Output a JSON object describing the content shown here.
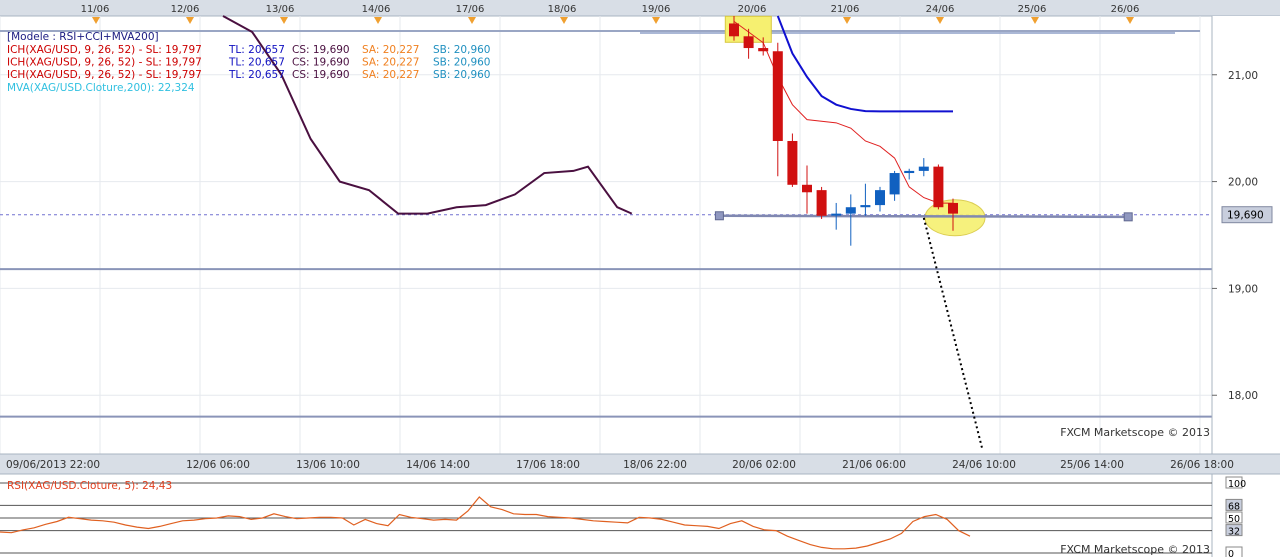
{
  "chart_data": {
    "type": "candlestick",
    "symbol": "XAG/USD",
    "top_date_labels": [
      "11/06",
      "12/06",
      "13/06",
      "14/06",
      "17/06",
      "18/06",
      "19/06",
      "20/06",
      "21/06",
      "24/06",
      "25/06",
      "26/06"
    ],
    "bottom_time_labels": [
      "09/06/2013 22:00",
      "12/06 06:00",
      "13/06 10:00",
      "14/06 14:00",
      "17/06 18:00",
      "18/06 22:00",
      "20/06 02:00",
      "21/06 06:00",
      "24/06 10:00",
      "25/06 14:00",
      "26/06 18:00"
    ],
    "legend": [
      {
        "text": "[Modele : RSI+CCI+MVA200]",
        "color": "#1a1a80"
      },
      {
        "label": "ICH(XAG/USD, 9, 26, 52) -  SL: 19,797",
        "color": "#cc0000",
        "tl": "TL: 20,657",
        "tl_color": "#1010c0",
        "cs": "CS: 19,690",
        "cs_color": "#4a1040",
        "sa": "SA: 20,227",
        "sa_color": "#f08020",
        "sb": "SB: 20,960",
        "sb_color": "#2090c0"
      },
      {
        "label": "ICH(XAG/USD, 9, 26, 52) -  SL: 19,797",
        "color": "#cc0000",
        "tl": "TL: 20,657",
        "tl_color": "#1010c0",
        "cs": "CS: 19,690",
        "cs_color": "#4a1040",
        "sa": "SA: 20,227",
        "sa_color": "#f08020",
        "sb": "SB: 20,960",
        "sb_color": "#2090c0"
      },
      {
        "label": "ICH(XAG/USD, 9, 26, 52) -  SL: 19,797",
        "color": "#cc0000",
        "tl": "TL: 20,657",
        "tl_color": "#1010c0",
        "cs": "CS: 19,690",
        "cs_color": "#4a1040",
        "sa": "SA: 20,227",
        "sa_color": "#f08020",
        "sb": "SB: 20,960",
        "sb_color": "#2090c0"
      },
      {
        "text": "MVA(XAG/USD.Cloture,200): 22,324",
        "color": "#30c0e0"
      }
    ],
    "y_axis": {
      "ticks": [
        "21,00",
        "20,00",
        "19,00",
        "18,00"
      ],
      "tick_values": [
        21.0,
        20.0,
        19.0,
        18.0
      ],
      "range": [
        17.45,
        21.55
      ]
    },
    "current_price": {
      "label": "19,690",
      "value": 19.69
    },
    "horizontal_lines": [
      19.18,
      17.8
    ],
    "top_line_value": 21.5,
    "candles": [
      {
        "i": 63,
        "o": 21.48,
        "h": 21.55,
        "l": 21.32,
        "c": 21.36
      },
      {
        "i": 64,
        "o": 21.36,
        "h": 21.43,
        "l": 21.15,
        "c": 21.25
      },
      {
        "i": 65,
        "o": 21.25,
        "h": 21.35,
        "l": 21.18,
        "c": 21.22
      },
      {
        "i": 66,
        "o": 21.22,
        "h": 21.3,
        "l": 20.05,
        "c": 20.38
      },
      {
        "i": 67,
        "o": 20.38,
        "h": 20.45,
        "l": 19.95,
        "c": 19.97
      },
      {
        "i": 68,
        "o": 19.97,
        "h": 20.15,
        "l": 19.7,
        "c": 19.9
      },
      {
        "i": 69,
        "o": 19.92,
        "h": 19.95,
        "l": 19.65,
        "c": 19.68
      },
      {
        "i": 70,
        "o": 19.69,
        "h": 19.8,
        "l": 19.55,
        "c": 19.7
      },
      {
        "i": 71,
        "o": 19.7,
        "h": 19.88,
        "l": 19.4,
        "c": 19.76
      },
      {
        "i": 72,
        "o": 19.76,
        "h": 19.98,
        "l": 19.68,
        "c": 19.78
      },
      {
        "i": 73,
        "o": 19.78,
        "h": 19.95,
        "l": 19.72,
        "c": 19.92
      },
      {
        "i": 74,
        "o": 19.88,
        "h": 20.1,
        "l": 19.82,
        "c": 20.08
      },
      {
        "i": 75,
        "o": 20.08,
        "h": 20.12,
        "l": 20.02,
        "c": 20.1
      },
      {
        "i": 76,
        "o": 20.1,
        "h": 20.22,
        "l": 20.05,
        "c": 20.14
      },
      {
        "i": 77,
        "o": 20.14,
        "h": 20.16,
        "l": 19.74,
        "c": 19.76
      },
      {
        "i": 78,
        "o": 19.8,
        "h": 19.84,
        "l": 19.54,
        "c": 19.7
      }
    ],
    "kijun_line": [
      {
        "i": 66,
        "v": 21.55
      },
      {
        "i": 67,
        "v": 21.2
      },
      {
        "i": 68,
        "v": 20.98
      },
      {
        "i": 69,
        "v": 20.8
      },
      {
        "i": 70,
        "v": 20.72
      },
      {
        "i": 71,
        "v": 20.68
      },
      {
        "i": 72,
        "v": 20.66
      },
      {
        "i": 73,
        "v": 20.657
      },
      {
        "i": 78,
        "v": 20.657
      }
    ],
    "tenkan_line": [
      {
        "i": 63,
        "v": 21.5
      },
      {
        "i": 64,
        "v": 21.4
      },
      {
        "i": 65,
        "v": 21.3
      },
      {
        "i": 66,
        "v": 20.98
      },
      {
        "i": 67,
        "v": 20.72
      },
      {
        "i": 68,
        "v": 20.58
      },
      {
        "i": 70,
        "v": 20.55
      },
      {
        "i": 71,
        "v": 20.5
      },
      {
        "i": 72,
        "v": 20.38
      },
      {
        "i": 73,
        "v": 20.33
      },
      {
        "i": 74,
        "v": 20.22
      },
      {
        "i": 75,
        "v": 19.95
      },
      {
        "i": 76,
        "v": 19.85
      },
      {
        "i": 77,
        "v": 19.8
      },
      {
        "i": 78,
        "v": 19.797
      }
    ],
    "chikou_line": [
      {
        "i": 28,
        "v": 21.55
      },
      {
        "i": 30,
        "v": 21.4
      },
      {
        "i": 32,
        "v": 21.0
      },
      {
        "i": 34,
        "v": 20.4
      },
      {
        "i": 36,
        "v": 20.0
      },
      {
        "i": 38,
        "v": 19.92
      },
      {
        "i": 40,
        "v": 19.7
      },
      {
        "i": 42,
        "v": 19.7
      },
      {
        "i": 44,
        "v": 19.76
      },
      {
        "i": 46,
        "v": 19.78
      },
      {
        "i": 48,
        "v": 19.88
      },
      {
        "i": 50,
        "v": 20.08
      },
      {
        "i": 52,
        "v": 20.1
      },
      {
        "i": 53,
        "v": 20.14
      },
      {
        "i": 55,
        "v": 19.76
      },
      {
        "i": 56,
        "v": 19.7
      }
    ],
    "cloud_segment": [
      {
        "i": 97,
        "sa": 21.5,
        "sb": 21.5
      },
      {
        "i": 98,
        "sa": 21.25,
        "sb": 21.14
      },
      {
        "i": 99,
        "sa": 21.06,
        "sb": 20.98
      },
      {
        "i": 100,
        "sa": 21.0,
        "sb": 20.95
      }
    ],
    "projection_line": [
      {
        "i": 76,
        "v": 19.66
      },
      {
        "i": 80,
        "v": 17.5
      }
    ],
    "trend_segment": [
      {
        "i": 62,
        "v": 19.68
      },
      {
        "i": 90,
        "v": 19.67
      }
    ],
    "highlights": [
      {
        "i": 63.5,
        "v": 21.36,
        "shape": "rect"
      },
      {
        "i": 78,
        "v": 19.68,
        "shape": "ellipse"
      }
    ],
    "rsi": {
      "label": "RSI(XAG/USD.Cloture, 5): 24,43",
      "y_ticks": [
        "100",
        "68",
        "50",
        "32",
        "0"
      ],
      "y_tick_values": [
        100,
        68,
        50,
        32,
        0
      ],
      "values": [
        30,
        29,
        33,
        36,
        41,
        45,
        51,
        49,
        47,
        46,
        44,
        40,
        37,
        35,
        38,
        42,
        46,
        47,
        49,
        50,
        53,
        52,
        48,
        50,
        56,
        52,
        49,
        50,
        51,
        51,
        50,
        40,
        48,
        42,
        39,
        55,
        51,
        49,
        47,
        48,
        47,
        60,
        80,
        66,
        62,
        56,
        55,
        55,
        52,
        51,
        50,
        48,
        46,
        45,
        44,
        43,
        51,
        50,
        48,
        44,
        40,
        39,
        38,
        35,
        42,
        46,
        38,
        33,
        32,
        24,
        18,
        12,
        8,
        6,
        6,
        7,
        10,
        15,
        20,
        28,
        45,
        52,
        55,
        48,
        32,
        24
      ]
    },
    "watermark": "FXCM Marketscope © 2013"
  }
}
